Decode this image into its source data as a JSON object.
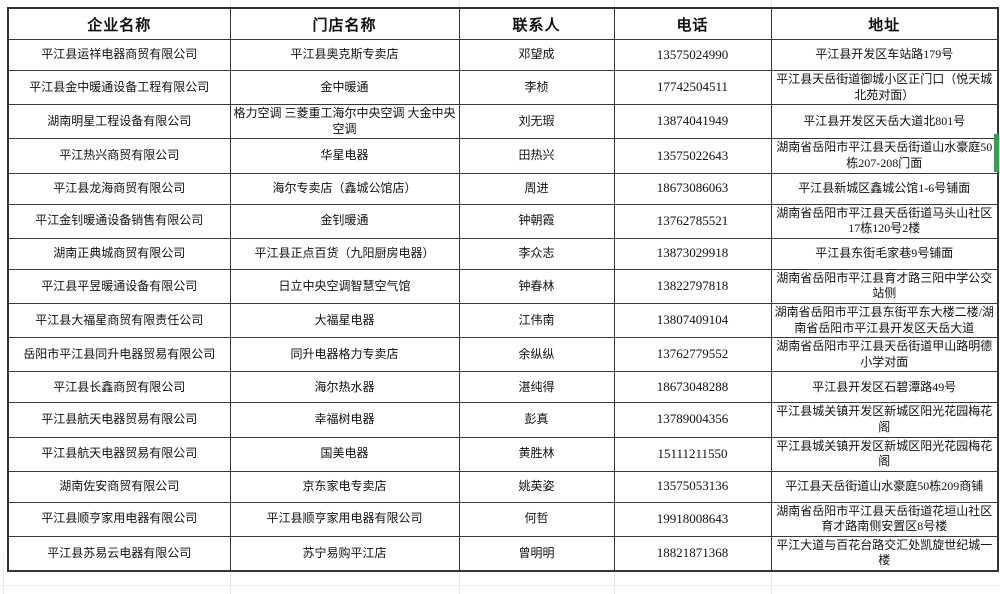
{
  "table": {
    "headers": [
      "企业名称",
      "门店名称",
      "联系人",
      "电话",
      "地址"
    ],
    "rows": [
      [
        "平江县运祥电器商贸有限公司",
        "平江县奥克斯专卖店",
        "邓望成",
        "13575024990",
        "平江县开发区车站路179号"
      ],
      [
        "平江县金中暖通设备工程有限公司",
        "金中暖通",
        "李桢",
        "17742504511",
        "平江县天岳街道御城小区正门口（悦天城北苑对面）"
      ],
      [
        "湖南明星工程设备有限公司",
        "格力空调 三菱重工海尔中央空调 大金中央空调",
        "刘无瑕",
        "13874041949",
        "平江县开发区天岳大道北801号"
      ],
      [
        "平江热兴商贸有限公司",
        "华星电器",
        "田热兴",
        "13575022643",
        "湖南省岳阳市平江县天岳街道山水豪庭50栋207-208门面"
      ],
      [
        "平江县龙海商贸有限公司",
        "海尔专卖店（鑫城公馆店）",
        "周进",
        "18673086063",
        "平江县新城区鑫城公馆1-6号铺面"
      ],
      [
        "平江金钊暖通设备销售有限公司",
        "金钊暖通",
        "钟朝霞",
        "13762785521",
        "湖南省岳阳市平江县天岳街道马头山社区17栋120号2楼"
      ],
      [
        "湖南正典城商贸有限公司",
        "平江县正点百货（九阳厨房电器）",
        "李众志",
        "13873029918",
        "平江县东街毛家巷9号铺面"
      ],
      [
        "平江县平昱暖通设备有限公司",
        "日立中央空调智慧空气馆",
        "钟春林",
        "13822797818",
        "湖南省岳阳市平江县育才路三阳中学公交站侧"
      ],
      [
        "平江县大福星商贸有限责任公司",
        "大福星电器",
        "江伟南",
        "13807409104",
        "湖南省岳阳市平江县东街平东大楼二楼/湖南省岳阳市平江县开发区天岳大道"
      ],
      [
        "岳阳市平江县同升电器贸易有限公司",
        "同升电器格力专卖店",
        "余纵纵",
        "13762779552",
        "湖南省岳阳市平江县天岳街道甲山路明德小学对面"
      ],
      [
        "平江县长鑫商贸有限公司",
        "海尔热水器",
        "湛纯得",
        "18673048288",
        "平江县开发区石碧潭路49号"
      ],
      [
        "平江县航天电器贸易有限公司",
        "幸福树电器",
        "彭真",
        "13789004356",
        "平江县城关镇开发区新城区阳光花园梅花阁"
      ],
      [
        "平江县航天电器贸易有限公司",
        "国美电器",
        "黄胜林",
        "15111211550",
        "平江县城关镇开发区新城区阳光花园梅花阁"
      ],
      [
        "湖南佐安商贸有限公司",
        "京东家电专卖店",
        "姚英姿",
        "13575053136",
        "平江县天岳街道山水豪庭50栋209商铺"
      ],
      [
        "平江县顺亨家用电器有限公司",
        "平江县顺亨家用电器有限公司",
        "何哲",
        "19918008643",
        "湖南省岳阳市平江县天岳街道花垣山社区育才路南侧安置区8号楼"
      ],
      [
        "平江县苏易云电器有限公司",
        "苏宁易购平江店",
        "曾明明",
        "18821871368",
        "平江大道与百花台路交汇处凯旋世纪城一楼"
      ]
    ]
  },
  "colors": {
    "table_border": "#3a3a3a",
    "gridline": "#e6e9ec",
    "selection_green": "#27a843",
    "background": "#ffffff",
    "text": "#111111"
  }
}
